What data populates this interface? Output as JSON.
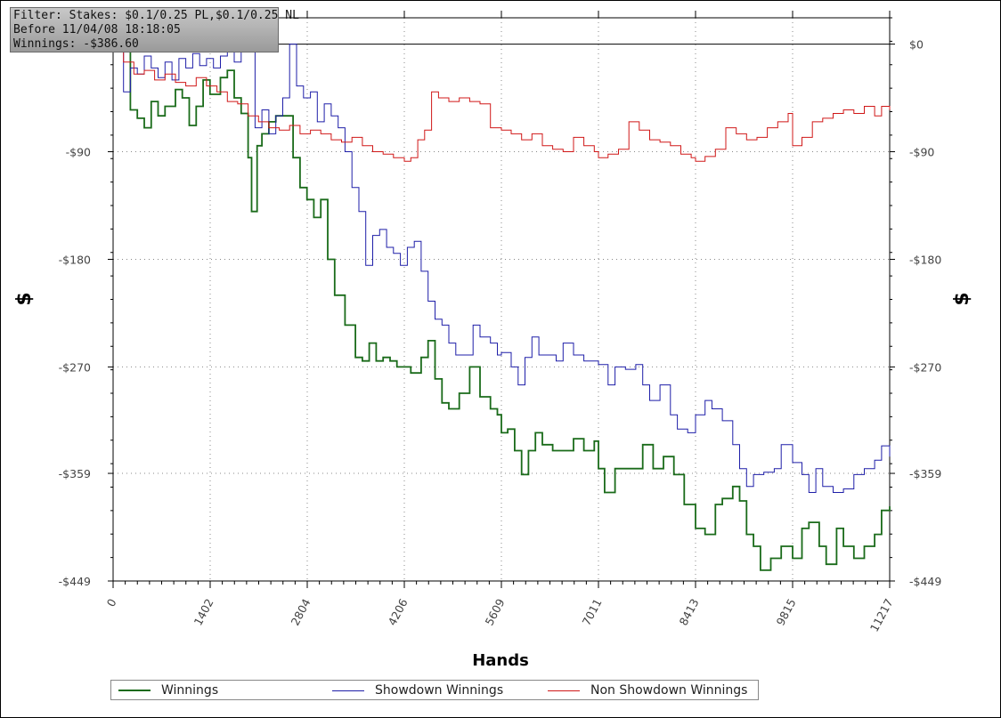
{
  "filter_box": {
    "line1": "Filter: Stakes: $0.1/0.25 PL,$0.1/0.25 NL",
    "line2": "Before 11/04/08 18:18:05",
    "line3": "Winnings: -$386.60"
  },
  "chart_data": {
    "type": "line",
    "xlabel": "Hands",
    "ylabel": "$",
    "xlim": [
      0,
      11217
    ],
    "ylim": [
      -449,
      22
    ],
    "x_ticks": [
      "0",
      "1402",
      "2804",
      "4206",
      "5609",
      "7011",
      "8413",
      "9815",
      "11217"
    ],
    "y_ticks": [
      "$0",
      "-$90",
      "-$180",
      "-$270",
      "-$359",
      "-$449"
    ],
    "y_tick_values": [
      0,
      -90,
      -180,
      -270,
      -359,
      -449
    ],
    "grid": true,
    "legend_position": "bottom",
    "series": [
      {
        "name": "Winnings",
        "color": "#1a6b1a",
        "points": [
          [
            0,
            0
          ],
          [
            150,
            -4
          ],
          [
            250,
            -55
          ],
          [
            350,
            -62
          ],
          [
            450,
            -70
          ],
          [
            550,
            -48
          ],
          [
            650,
            -60
          ],
          [
            750,
            -52
          ],
          [
            900,
            -38
          ],
          [
            1000,
            -45
          ],
          [
            1100,
            -68
          ],
          [
            1200,
            -52
          ],
          [
            1300,
            -30
          ],
          [
            1400,
            -42
          ],
          [
            1550,
            -28
          ],
          [
            1650,
            -22
          ],
          [
            1750,
            -45
          ],
          [
            1850,
            -58
          ],
          [
            1950,
            -95
          ],
          [
            2000,
            -140
          ],
          [
            2080,
            -85
          ],
          [
            2150,
            -75
          ],
          [
            2250,
            -65
          ],
          [
            2350,
            -60
          ],
          [
            2500,
            -60
          ],
          [
            2600,
            -95
          ],
          [
            2700,
            -120
          ],
          [
            2800,
            -130
          ],
          [
            2900,
            -145
          ],
          [
            3000,
            -130
          ],
          [
            3100,
            -180
          ],
          [
            3200,
            -210
          ],
          [
            3350,
            -235
          ],
          [
            3500,
            -262
          ],
          [
            3600,
            -265
          ],
          [
            3700,
            -250
          ],
          [
            3800,
            -265
          ],
          [
            3900,
            -262
          ],
          [
            4000,
            -265
          ],
          [
            4100,
            -270
          ],
          [
            4300,
            -275
          ],
          [
            4450,
            -262
          ],
          [
            4550,
            -248
          ],
          [
            4650,
            -280
          ],
          [
            4750,
            -300
          ],
          [
            4850,
            -305
          ],
          [
            5000,
            -292
          ],
          [
            5150,
            -270
          ],
          [
            5300,
            -295
          ],
          [
            5450,
            -305
          ],
          [
            5550,
            -310
          ],
          [
            5609,
            -325
          ],
          [
            5700,
            -322
          ],
          [
            5800,
            -340
          ],
          [
            5900,
            -360
          ],
          [
            6000,
            -340
          ],
          [
            6100,
            -325
          ],
          [
            6200,
            -335
          ],
          [
            6350,
            -340
          ],
          [
            6500,
            -340
          ],
          [
            6650,
            -330
          ],
          [
            6800,
            -340
          ],
          [
            6950,
            -332
          ],
          [
            7011,
            -355
          ],
          [
            7100,
            -375
          ],
          [
            7250,
            -355
          ],
          [
            7400,
            -355
          ],
          [
            7500,
            -355
          ],
          [
            7650,
            -335
          ],
          [
            7800,
            -355
          ],
          [
            7950,
            -345
          ],
          [
            8100,
            -360
          ],
          [
            8250,
            -385
          ],
          [
            8413,
            -405
          ],
          [
            8550,
            -410
          ],
          [
            8700,
            -385
          ],
          [
            8800,
            -380
          ],
          [
            8950,
            -370
          ],
          [
            9050,
            -382
          ],
          [
            9150,
            -410
          ],
          [
            9250,
            -420
          ],
          [
            9350,
            -440
          ],
          [
            9500,
            -430
          ],
          [
            9650,
            -420
          ],
          [
            9815,
            -430
          ],
          [
            9950,
            -405
          ],
          [
            10050,
            -400
          ],
          [
            10200,
            -420
          ],
          [
            10300,
            -435
          ],
          [
            10450,
            -405
          ],
          [
            10550,
            -420
          ],
          [
            10700,
            -430
          ],
          [
            10850,
            -420
          ],
          [
            11000,
            -410
          ],
          [
            11100,
            -390
          ],
          [
            11217,
            -386.6
          ]
        ]
      },
      {
        "name": "Showdown Winnings",
        "color": "#1e1ea8",
        "points": [
          [
            0,
            0
          ],
          [
            150,
            -40
          ],
          [
            250,
            -20
          ],
          [
            350,
            -25
          ],
          [
            450,
            -10
          ],
          [
            550,
            -20
          ],
          [
            650,
            -28
          ],
          [
            750,
            -15
          ],
          [
            850,
            -30
          ],
          [
            950,
            -12
          ],
          [
            1050,
            -20
          ],
          [
            1150,
            -8
          ],
          [
            1250,
            -18
          ],
          [
            1350,
            -12
          ],
          [
            1450,
            -20
          ],
          [
            1550,
            -10
          ],
          [
            1650,
            -5
          ],
          [
            1750,
            -15
          ],
          [
            1850,
            -5
          ],
          [
            1950,
            0
          ],
          [
            2050,
            -70
          ],
          [
            2150,
            -55
          ],
          [
            2250,
            -75
          ],
          [
            2350,
            -60
          ],
          [
            2450,
            -45
          ],
          [
            2550,
            0
          ],
          [
            2650,
            -35
          ],
          [
            2750,
            -45
          ],
          [
            2850,
            -40
          ],
          [
            2950,
            -65
          ],
          [
            3050,
            -50
          ],
          [
            3150,
            -60
          ],
          [
            3250,
            -70
          ],
          [
            3350,
            -90
          ],
          [
            3450,
            -120
          ],
          [
            3550,
            -140
          ],
          [
            3650,
            -185
          ],
          [
            3750,
            -160
          ],
          [
            3850,
            -155
          ],
          [
            3950,
            -170
          ],
          [
            4050,
            -175
          ],
          [
            4150,
            -185
          ],
          [
            4250,
            -170
          ],
          [
            4350,
            -165
          ],
          [
            4450,
            -190
          ],
          [
            4550,
            -215
          ],
          [
            4650,
            -230
          ],
          [
            4750,
            -235
          ],
          [
            4850,
            -250
          ],
          [
            4950,
            -260
          ],
          [
            5100,
            -260
          ],
          [
            5200,
            -235
          ],
          [
            5300,
            -245
          ],
          [
            5450,
            -250
          ],
          [
            5550,
            -260
          ],
          [
            5609,
            -258
          ],
          [
            5750,
            -270
          ],
          [
            5850,
            -285
          ],
          [
            5950,
            -262
          ],
          [
            6050,
            -245
          ],
          [
            6150,
            -260
          ],
          [
            6250,
            -260
          ],
          [
            6400,
            -265
          ],
          [
            6500,
            -250
          ],
          [
            6650,
            -260
          ],
          [
            6800,
            -265
          ],
          [
            7011,
            -268
          ],
          [
            7150,
            -285
          ],
          [
            7250,
            -270
          ],
          [
            7400,
            -272
          ],
          [
            7550,
            -268
          ],
          [
            7650,
            -285
          ],
          [
            7750,
            -298
          ],
          [
            7900,
            -285
          ],
          [
            8050,
            -310
          ],
          [
            8150,
            -322
          ],
          [
            8300,
            -325
          ],
          [
            8413,
            -310
          ],
          [
            8550,
            -298
          ],
          [
            8650,
            -305
          ],
          [
            8800,
            -315
          ],
          [
            8950,
            -335
          ],
          [
            9050,
            -355
          ],
          [
            9150,
            -370
          ],
          [
            9250,
            -360
          ],
          [
            9400,
            -358
          ],
          [
            9550,
            -355
          ],
          [
            9650,
            -335
          ],
          [
            9815,
            -350
          ],
          [
            9950,
            -360
          ],
          [
            10050,
            -375
          ],
          [
            10150,
            -355
          ],
          [
            10250,
            -370
          ],
          [
            10400,
            -375
          ],
          [
            10550,
            -372
          ],
          [
            10700,
            -360
          ],
          [
            10850,
            -355
          ],
          [
            11000,
            -348
          ],
          [
            11100,
            -336
          ],
          [
            11217,
            -345
          ]
        ]
      },
      {
        "name": "Non Showdown Winnings",
        "color": "#d01818",
        "points": [
          [
            0,
            0
          ],
          [
            150,
            -15
          ],
          [
            300,
            -25
          ],
          [
            450,
            -22
          ],
          [
            600,
            -30
          ],
          [
            750,
            -25
          ],
          [
            900,
            -32
          ],
          [
            1050,
            -35
          ],
          [
            1200,
            -28
          ],
          [
            1350,
            -35
          ],
          [
            1500,
            -40
          ],
          [
            1650,
            -48
          ],
          [
            1800,
            -50
          ],
          [
            1950,
            -60
          ],
          [
            2100,
            -65
          ],
          [
            2250,
            -70
          ],
          [
            2400,
            -72
          ],
          [
            2550,
            -68
          ],
          [
            2700,
            -75
          ],
          [
            2850,
            -72
          ],
          [
            3000,
            -75
          ],
          [
            3150,
            -80
          ],
          [
            3300,
            -82
          ],
          [
            3450,
            -78
          ],
          [
            3600,
            -85
          ],
          [
            3750,
            -90
          ],
          [
            3900,
            -92
          ],
          [
            4050,
            -95
          ],
          [
            4206,
            -98
          ],
          [
            4300,
            -95
          ],
          [
            4400,
            -80
          ],
          [
            4500,
            -72
          ],
          [
            4600,
            -40
          ],
          [
            4700,
            -45
          ],
          [
            4850,
            -48
          ],
          [
            5000,
            -45
          ],
          [
            5150,
            -48
          ],
          [
            5300,
            -50
          ],
          [
            5450,
            -70
          ],
          [
            5609,
            -72
          ],
          [
            5750,
            -75
          ],
          [
            5900,
            -80
          ],
          [
            6050,
            -75
          ],
          [
            6200,
            -85
          ],
          [
            6350,
            -88
          ],
          [
            6500,
            -90
          ],
          [
            6650,
            -78
          ],
          [
            6800,
            -85
          ],
          [
            6950,
            -90
          ],
          [
            7011,
            -95
          ],
          [
            7150,
            -92
          ],
          [
            7300,
            -88
          ],
          [
            7450,
            -65
          ],
          [
            7600,
            -72
          ],
          [
            7750,
            -80
          ],
          [
            7900,
            -82
          ],
          [
            8050,
            -85
          ],
          [
            8200,
            -92
          ],
          [
            8350,
            -95
          ],
          [
            8413,
            -98
          ],
          [
            8550,
            -94
          ],
          [
            8700,
            -88
          ],
          [
            8850,
            -70
          ],
          [
            9000,
            -75
          ],
          [
            9150,
            -80
          ],
          [
            9300,
            -78
          ],
          [
            9450,
            -70
          ],
          [
            9600,
            -65
          ],
          [
            9750,
            -58
          ],
          [
            9815,
            -85
          ],
          [
            9950,
            -78
          ],
          [
            10100,
            -65
          ],
          [
            10250,
            -62
          ],
          [
            10400,
            -58
          ],
          [
            10550,
            -55
          ],
          [
            10700,
            -58
          ],
          [
            10850,
            -52
          ],
          [
            11000,
            -60
          ],
          [
            11100,
            -52
          ],
          [
            11217,
            -55
          ]
        ]
      }
    ]
  }
}
